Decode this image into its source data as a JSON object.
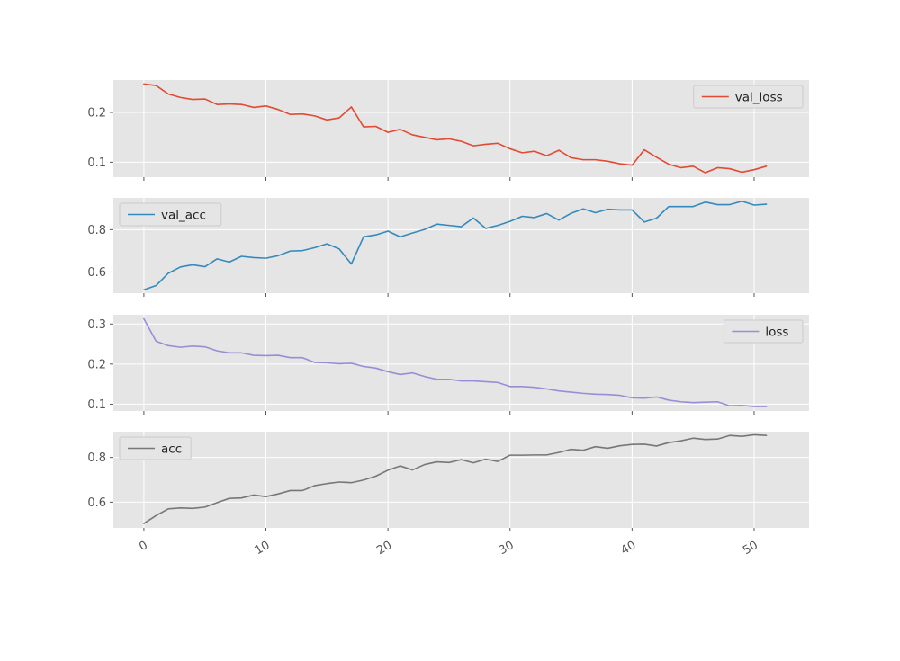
{
  "chart_data": [
    {
      "type": "line",
      "series": [
        {
          "name": "val_loss",
          "color": "#E24A33",
          "values": [
            0.257,
            0.254,
            0.237,
            0.23,
            0.226,
            0.227,
            0.216,
            0.217,
            0.216,
            0.21,
            0.213,
            0.206,
            0.196,
            0.197,
            0.193,
            0.185,
            0.189,
            0.211,
            0.171,
            0.172,
            0.16,
            0.166,
            0.155,
            0.15,
            0.145,
            0.147,
            0.142,
            0.133,
            0.136,
            0.138,
            0.127,
            0.119,
            0.122,
            0.113,
            0.124,
            0.109,
            0.105,
            0.105,
            0.102,
            0.097,
            0.094,
            0.125,
            0.11,
            0.096,
            0.089,
            0.092,
            0.079,
            0.089,
            0.087,
            0.08,
            0.085,
            0.092
          ]
        }
      ],
      "ylim": [
        0.07,
        0.265
      ],
      "yticks": [
        0.1,
        0.2
      ],
      "legend": "upper right",
      "grid": true
    },
    {
      "type": "line",
      "series": [
        {
          "name": "val_acc",
          "color": "#348ABD",
          "values": [
            0.516,
            0.536,
            0.594,
            0.624,
            0.634,
            0.625,
            0.662,
            0.647,
            0.674,
            0.668,
            0.665,
            0.677,
            0.699,
            0.701,
            0.715,
            0.733,
            0.709,
            0.638,
            0.766,
            0.775,
            0.793,
            0.766,
            0.784,
            0.801,
            0.826,
            0.82,
            0.814,
            0.855,
            0.806,
            0.82,
            0.839,
            0.863,
            0.857,
            0.876,
            0.845,
            0.877,
            0.898,
            0.88,
            0.896,
            0.893,
            0.893,
            0.836,
            0.854,
            0.909,
            0.909,
            0.909,
            0.93,
            0.918,
            0.918,
            0.934,
            0.916,
            0.92
          ]
        }
      ],
      "ylim": [
        0.5,
        0.95
      ],
      "yticks": [
        0.6,
        0.8
      ],
      "legend": "upper left",
      "grid": true
    },
    {
      "type": "line",
      "series": [
        {
          "name": "loss",
          "color": "#988ED5",
          "values": [
            0.313,
            0.257,
            0.246,
            0.242,
            0.245,
            0.243,
            0.233,
            0.228,
            0.228,
            0.222,
            0.221,
            0.222,
            0.216,
            0.216,
            0.204,
            0.203,
            0.201,
            0.202,
            0.194,
            0.19,
            0.181,
            0.174,
            0.178,
            0.169,
            0.162,
            0.162,
            0.158,
            0.158,
            0.156,
            0.154,
            0.144,
            0.144,
            0.142,
            0.138,
            0.133,
            0.13,
            0.127,
            0.125,
            0.124,
            0.122,
            0.116,
            0.115,
            0.118,
            0.11,
            0.106,
            0.104,
            0.105,
            0.106,
            0.096,
            0.097,
            0.094,
            0.094
          ]
        }
      ],
      "ylim": [
        0.083,
        0.323
      ],
      "yticks": [
        0.1,
        0.2,
        0.3
      ],
      "legend": "upper right",
      "grid": true
    },
    {
      "type": "line",
      "series": [
        {
          "name": "acc",
          "color": "#777777",
          "values": [
            0.505,
            0.54,
            0.57,
            0.574,
            0.572,
            0.578,
            0.598,
            0.617,
            0.619,
            0.632,
            0.625,
            0.637,
            0.652,
            0.652,
            0.674,
            0.683,
            0.69,
            0.687,
            0.699,
            0.716,
            0.743,
            0.762,
            0.744,
            0.768,
            0.78,
            0.777,
            0.79,
            0.776,
            0.792,
            0.782,
            0.81,
            0.81,
            0.811,
            0.811,
            0.822,
            0.836,
            0.832,
            0.848,
            0.841,
            0.852,
            0.858,
            0.859,
            0.851,
            0.866,
            0.874,
            0.886,
            0.88,
            0.882,
            0.898,
            0.894,
            0.901,
            0.898
          ]
        }
      ],
      "ylim": [
        0.485,
        0.915
      ],
      "yticks": [
        0.6,
        0.8
      ],
      "legend": "upper left",
      "grid": true
    }
  ],
  "shared_x": {
    "xlim": [
      -2.5,
      54.5
    ],
    "xticks": [
      0,
      10,
      20,
      30,
      40,
      50
    ],
    "tick_rotation": -30
  },
  "style": {
    "axes_background": "#E5E5E5",
    "grid_color": "#FFFFFF",
    "tick_color": "#555555",
    "legend_face": "#E5E5E5",
    "legend_edge": "#CCCCCC"
  }
}
